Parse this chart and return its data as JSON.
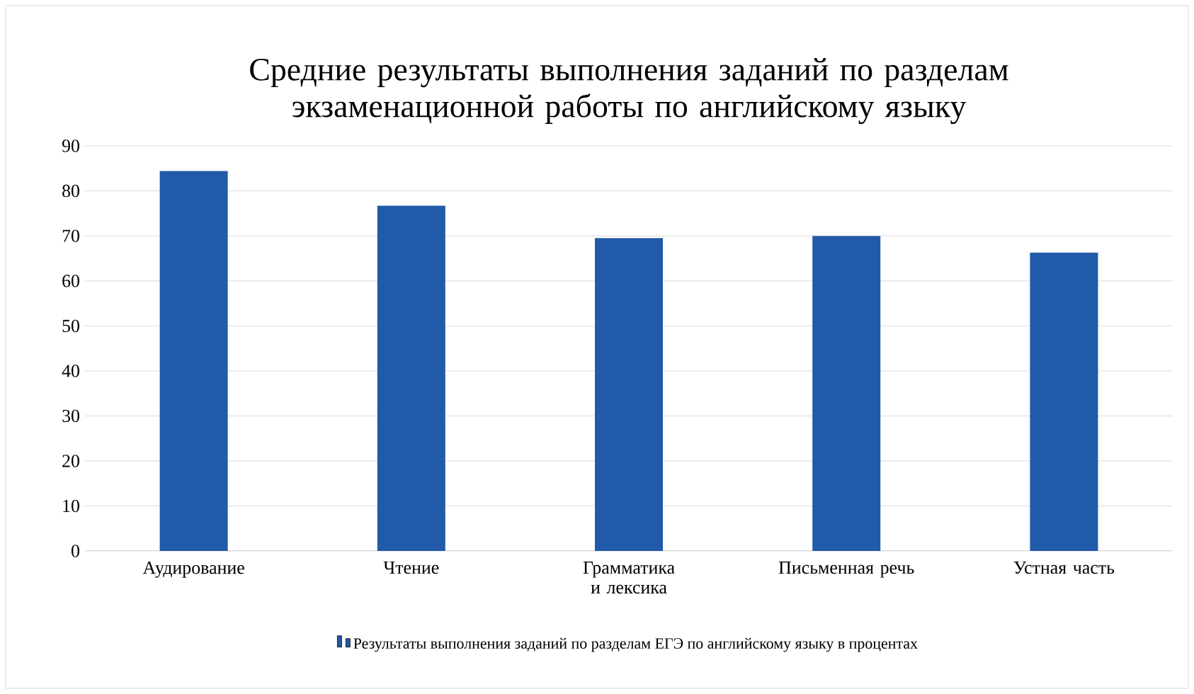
{
  "chart_data": {
    "type": "bar",
    "title": "Средние результаты выполнения заданий по разделам экзаменационной работы по английскому языку",
    "categories": [
      "Аудирование",
      "Чтение",
      "Грамматика и лексика",
      "Письменная речь",
      "Устная часть"
    ],
    "series": [
      {
        "name": "Результаты выполнения заданий по разделам ЕГЭ по английскому языку в процентах",
        "color": "#215aa8",
        "values": [
          84.4,
          76.7,
          69.5,
          70.0,
          66.3
        ]
      }
    ],
    "ylim": [
      0,
      90
    ],
    "yticks": [
      0,
      10,
      20,
      30,
      40,
      50,
      60,
      70,
      80,
      90
    ],
    "grid": "y",
    "legend": "bottom"
  }
}
